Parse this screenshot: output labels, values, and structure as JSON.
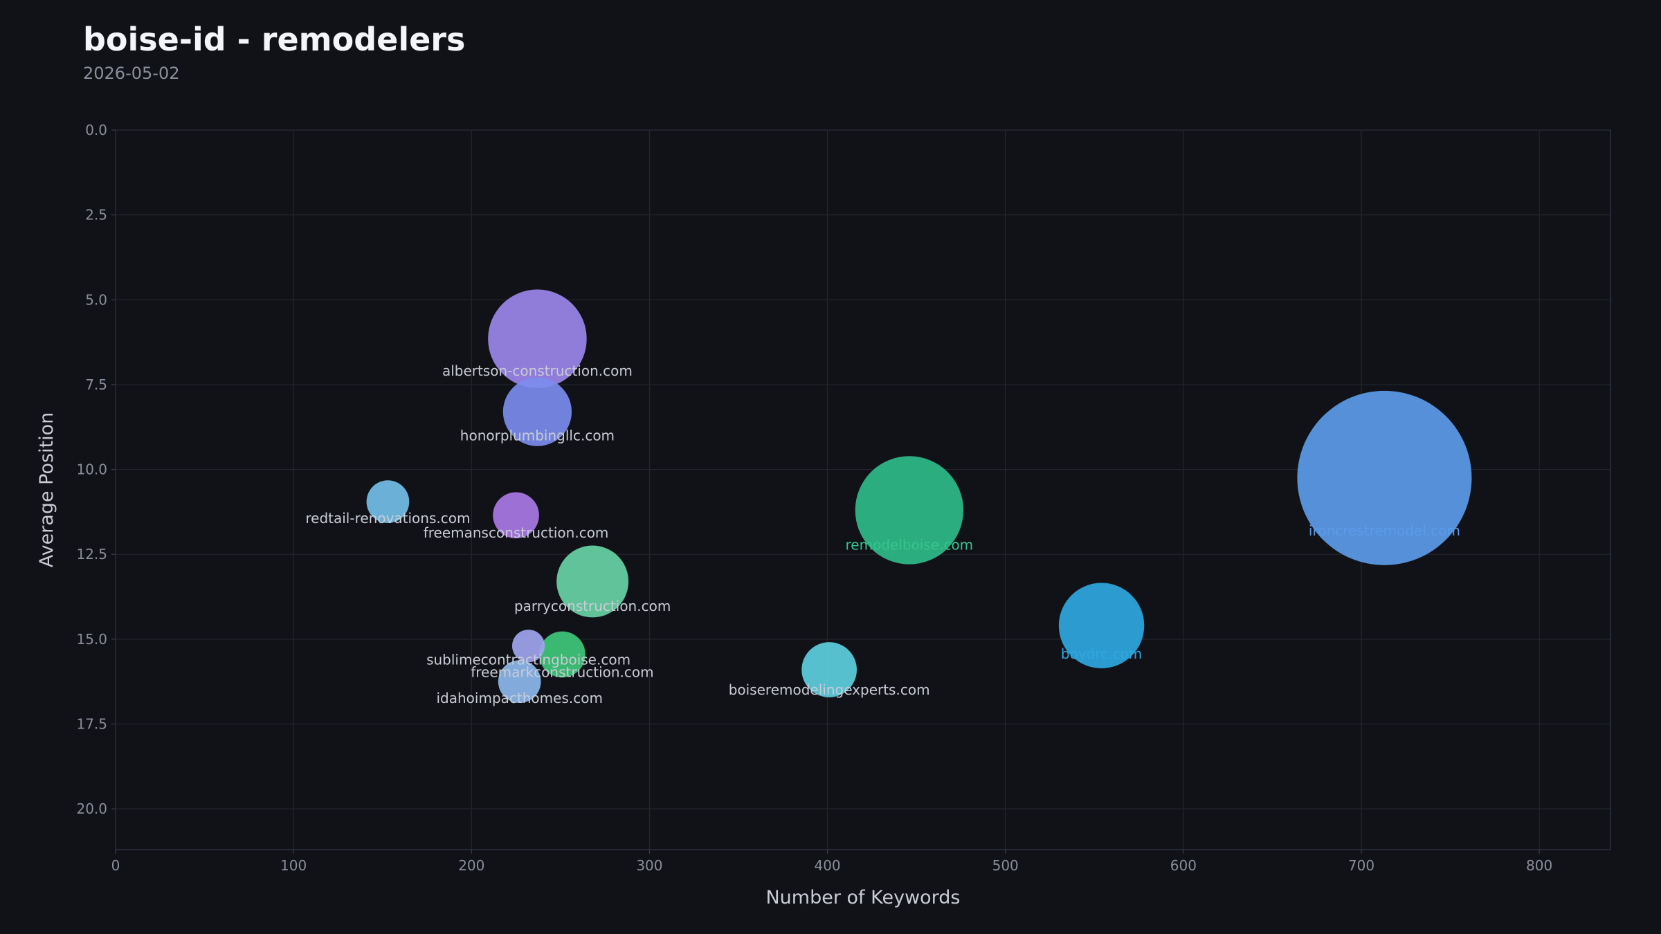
{
  "header": {
    "title": "boise-id - remodelers",
    "date": "2026-05-02"
  },
  "chart_data": {
    "type": "scatter",
    "variant": "bubble",
    "title": "boise-id - remodelers",
    "subtitle": "2026-05-02",
    "xlabel": "Number of Keywords",
    "ylabel": "Average Position",
    "xlim": [
      0,
      840
    ],
    "ylim": [
      21.2,
      0
    ],
    "y_inverted": true,
    "x_ticks": [
      0,
      100,
      200,
      300,
      400,
      500,
      600,
      700,
      800
    ],
    "y_ticks": [
      "0.0",
      "2.5",
      "5.0",
      "7.5",
      "10.0",
      "12.5",
      "15.0",
      "17.5",
      "20.0"
    ],
    "grid": true,
    "points": [
      {
        "label": "ironcrestremodel.com",
        "x": 713,
        "y": 10.25,
        "size": 1,
        "color": "#5b9bea",
        "label_color": "#5b9bea"
      },
      {
        "label": "remodelboise.com",
        "x": 446,
        "y": 11.2,
        "size": 0.385,
        "color": "#2fbb8a",
        "label_color": "#35c48e"
      },
      {
        "label": "albertson-construction.com",
        "x": 237,
        "y": 6.15,
        "size": 0.32,
        "color": "#9b85ea",
        "label_color": "#c9ccd6"
      },
      {
        "label": "boydrc.com",
        "x": 554,
        "y": 14.6,
        "size": 0.24,
        "color": "#2fa7e0",
        "label_color": "#2fa7e0"
      },
      {
        "label": "honorplumbingllc.com",
        "x": 237,
        "y": 8.3,
        "size": 0.155,
        "color": "#7b8cee",
        "label_color": "#c9ccd6"
      },
      {
        "label": "parryconstruction.com",
        "x": 268,
        "y": 13.3,
        "size": 0.17,
        "color": "#67d2a6",
        "label_color": "#c9ccd6"
      },
      {
        "label": "boiseremodelingexperts.com",
        "x": 401,
        "y": 15.9,
        "size": 0.1,
        "color": "#5ccfe0",
        "label_color": "#c9ccd6"
      },
      {
        "label": "freemarkconstruction.com",
        "x": 251,
        "y": 15.45,
        "size": 0.07,
        "color": "#3fc77a",
        "label_color": "#c9ccd6"
      },
      {
        "label": "freemansconstruction.com",
        "x": 225,
        "y": 11.35,
        "size": 0.07,
        "color": "#a978e6",
        "label_color": "#c9ccd6"
      },
      {
        "label": "redtail-renovations.com",
        "x": 153,
        "y": 10.95,
        "size": 0.06,
        "color": "#73bfe8",
        "label_color": "#c9ccd6"
      },
      {
        "label": "idahoimpacthomes.com",
        "x": 227,
        "y": 16.25,
        "size": 0.06,
        "color": "#8cb8ee",
        "label_color": "#c9ccd6"
      },
      {
        "label": "sublimecontractingboise.com",
        "x": 232,
        "y": 15.2,
        "size": 0.035,
        "color": "#9fa5ef",
        "label_color": "#c9ccd6"
      }
    ]
  }
}
